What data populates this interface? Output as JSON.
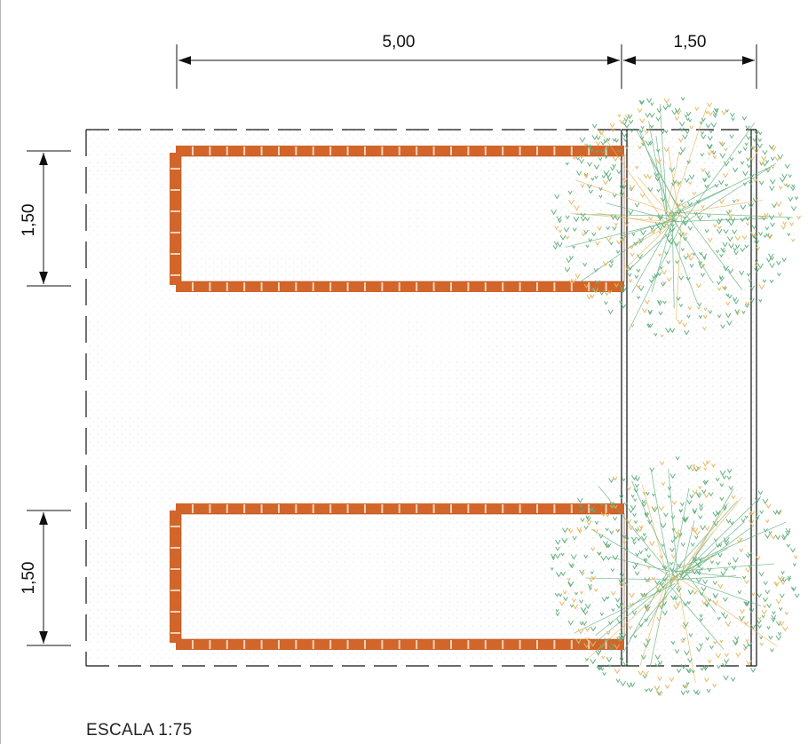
{
  "drawing": {
    "scale_label": "ESCALA 1:75",
    "dimensions": {
      "top_main": "5,00",
      "top_side": "1,50",
      "left_upper": "1,50",
      "left_lower": "1,50"
    },
    "colors": {
      "brick": "#d2652a",
      "brick_mortar": "#f3d2b8",
      "tree_green": "#5fae7c",
      "tree_yellow": "#e8b65a",
      "line": "#111111",
      "fill_dots": "#c9c9c9"
    }
  }
}
